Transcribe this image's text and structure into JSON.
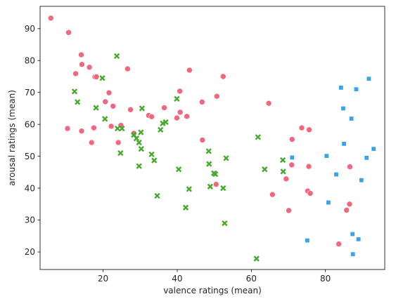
{
  "chart_data": {
    "type": "scatter",
    "title": "",
    "xlabel": "valence ratings (mean)",
    "ylabel": "arousal ratings (mean)",
    "xlim": [
      3,
      96
    ],
    "ylim": [
      14.5,
      97
    ],
    "xticks": [
      20,
      40,
      60,
      80
    ],
    "yticks": [
      20,
      30,
      40,
      50,
      60,
      70,
      80,
      90
    ],
    "grid": false,
    "legend": null,
    "series": [
      {
        "marker": "circle",
        "color": "#f0677e",
        "points": [
          [
            5.9,
            93.3
          ],
          [
            10.7,
            88.8
          ],
          [
            10.4,
            58.7
          ],
          [
            12.6,
            75.9
          ],
          [
            14.1,
            81.8
          ],
          [
            14.3,
            78.8
          ],
          [
            14.2,
            57.9
          ],
          [
            16.3,
            77.9
          ],
          [
            16.9,
            54.3
          ],
          [
            17.5,
            58.9
          ],
          [
            17.8,
            74.9
          ],
          [
            18.2,
            74.9
          ],
          [
            20.6,
            67.1
          ],
          [
            21.6,
            69.9
          ],
          [
            22.2,
            59.4
          ],
          [
            22.7,
            65.7
          ],
          [
            24.1,
            54.3
          ],
          [
            24.8,
            59.7
          ],
          [
            26.6,
            77.4
          ],
          [
            27.4,
            64.6
          ],
          [
            28.3,
            57.2
          ],
          [
            32.3,
            62.8
          ],
          [
            33.1,
            62.4
          ],
          [
            36.5,
            65.2
          ],
          [
            39.9,
            62.0
          ],
          [
            40.7,
            70.4
          ],
          [
            40.8,
            63.8
          ],
          [
            42.6,
            62.5
          ],
          [
            43.3,
            77.0
          ],
          [
            46.7,
            67.0
          ],
          [
            46.8,
            55.1
          ],
          [
            50.5,
            41.2
          ],
          [
            50.7,
            68.8
          ],
          [
            52.4,
            75.0
          ],
          [
            64.7,
            66.6
          ],
          [
            65.7,
            38.0
          ],
          [
            69.4,
            42.9
          ],
          [
            70.1,
            33.0
          ],
          [
            70.9,
            47.3
          ],
          [
            71.0,
            55.3
          ],
          [
            73.6,
            58.9
          ],
          [
            75.2,
            39.1
          ],
          [
            75.5,
            46.8
          ],
          [
            75.6,
            58.3
          ],
          [
            75.9,
            38.4
          ],
          [
            83.6,
            22.5
          ],
          [
            85.7,
            33.1
          ],
          [
            86.5,
            35.0
          ],
          [
            86.6,
            46.7
          ]
        ]
      },
      {
        "marker": "x",
        "color": "#44aa2c",
        "points": [
          [
            12.3,
            70.3
          ],
          [
            13.1,
            67.0
          ],
          [
            18.1,
            65.2
          ],
          [
            19.8,
            74.5
          ],
          [
            20.5,
            61.7
          ],
          [
            23.7,
            81.4
          ],
          [
            23.9,
            58.7
          ],
          [
            24.7,
            51.0
          ],
          [
            25.1,
            58.7
          ],
          [
            28.3,
            56.7
          ],
          [
            29.0,
            55.6
          ],
          [
            29.7,
            54.3
          ],
          [
            30.2,
            57.5
          ],
          [
            29.7,
            46.9
          ],
          [
            30.3,
            52.3
          ],
          [
            30.5,
            65.0
          ],
          [
            33.1,
            50.6
          ],
          [
            33.8,
            48.7
          ],
          [
            34.6,
            37.6
          ],
          [
            35.5,
            58.3
          ],
          [
            36.1,
            60.3
          ],
          [
            36.9,
            60.7
          ],
          [
            39.9,
            68.0
          ],
          [
            40.4,
            45.9
          ],
          [
            42.3,
            33.9
          ],
          [
            43.2,
            39.7
          ],
          [
            48.5,
            51.6
          ],
          [
            48.6,
            47.6
          ],
          [
            48.9,
            40.5
          ],
          [
            49.9,
            44.7
          ],
          [
            50.3,
            44.4
          ],
          [
            52.4,
            40.0
          ],
          [
            52.8,
            29.0
          ],
          [
            53.2,
            49.4
          ],
          [
            61.4,
            17.9
          ],
          [
            61.8,
            56.0
          ],
          [
            63.6,
            45.9
          ],
          [
            68.5,
            48.8
          ],
          [
            68.6,
            45.2
          ]
        ]
      },
      {
        "marker": "square",
        "color": "#3ba3ec",
        "points": [
          [
            71.0,
            49.6
          ],
          [
            75.1,
            23.6
          ],
          [
            80.3,
            50.1
          ],
          [
            80.8,
            35.5
          ],
          [
            82.9,
            44.3
          ],
          [
            84.2,
            71.5
          ],
          [
            84.8,
            65.0
          ],
          [
            85.0,
            53.9
          ],
          [
            87.0,
            61.8
          ],
          [
            87.3,
            25.6
          ],
          [
            87.4,
            19.3
          ],
          [
            88.3,
            71.0
          ],
          [
            88.9,
            24.0
          ],
          [
            89.7,
            42.5
          ],
          [
            91.1,
            49.5
          ],
          [
            91.7,
            74.3
          ],
          [
            93.0,
            52.3
          ]
        ]
      }
    ]
  }
}
